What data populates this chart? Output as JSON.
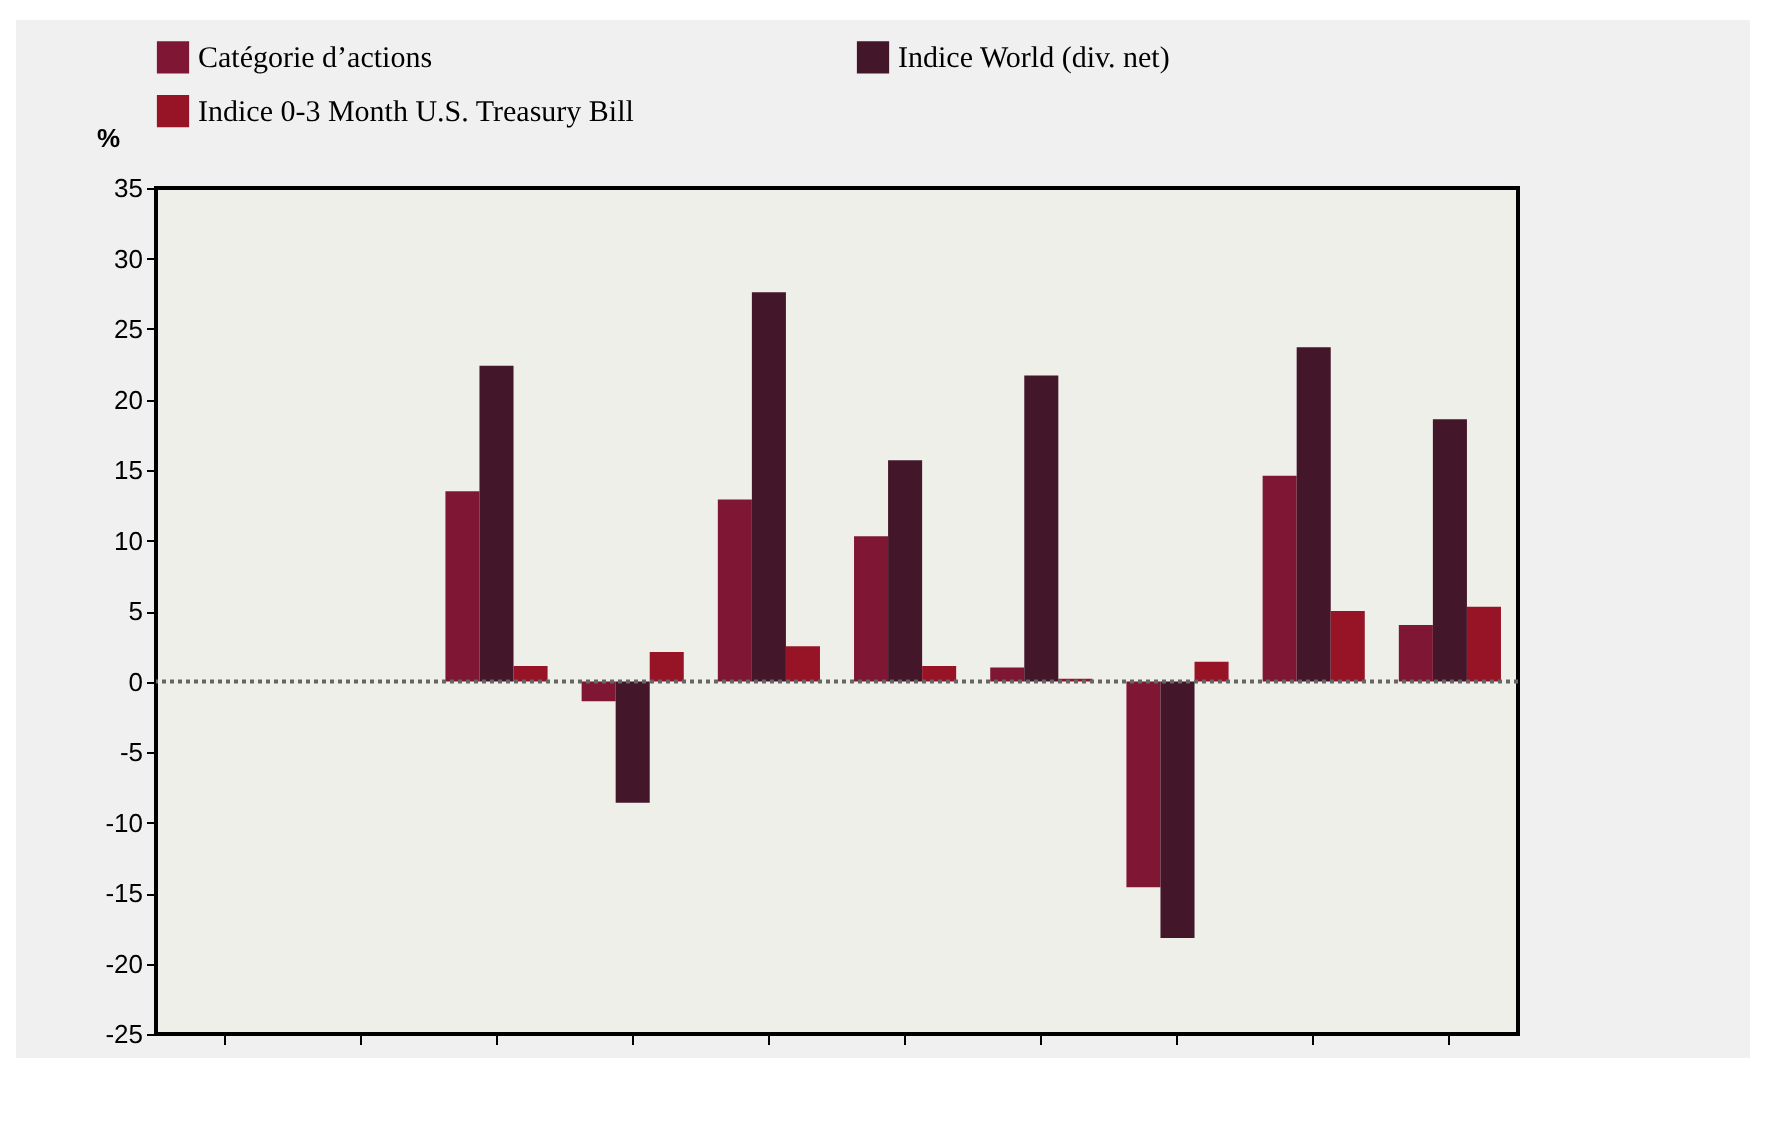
{
  "chart_data": {
    "type": "bar",
    "ylabel": "%",
    "categories": [
      null,
      null,
      null,
      null,
      null,
      null,
      null,
      null,
      null,
      null
    ],
    "series": [
      {
        "name": "Catégorie d’actions",
        "color": "#7f1734",
        "values": [
          null,
          null,
          13.5,
          -1.4,
          12.9,
          10.3,
          1.0,
          -14.6,
          14.6,
          4.0
        ]
      },
      {
        "name": "Indice World (div. net)",
        "color": "#43162a",
        "values": [
          null,
          null,
          22.4,
          -8.6,
          27.6,
          15.7,
          21.7,
          -18.2,
          23.7,
          18.6
        ]
      },
      {
        "name": "Indice 0-3 Month U.S. Treasury Bill",
        "color": "#971426",
        "values": [
          null,
          null,
          1.1,
          2.1,
          2.5,
          1.1,
          0.2,
          1.4,
          5.0,
          5.3
        ]
      }
    ],
    "ylim": [
      -25,
      35
    ],
    "yticks": [
      -25,
      -20,
      -15,
      -10,
      -5,
      0,
      5,
      10,
      15,
      20,
      25,
      30,
      35
    ],
    "ref_lines": [
      {
        "axis": "y",
        "value": 0,
        "color": "#666666",
        "line_style": "dotted"
      }
    ],
    "grid": false,
    "legend": "top"
  }
}
